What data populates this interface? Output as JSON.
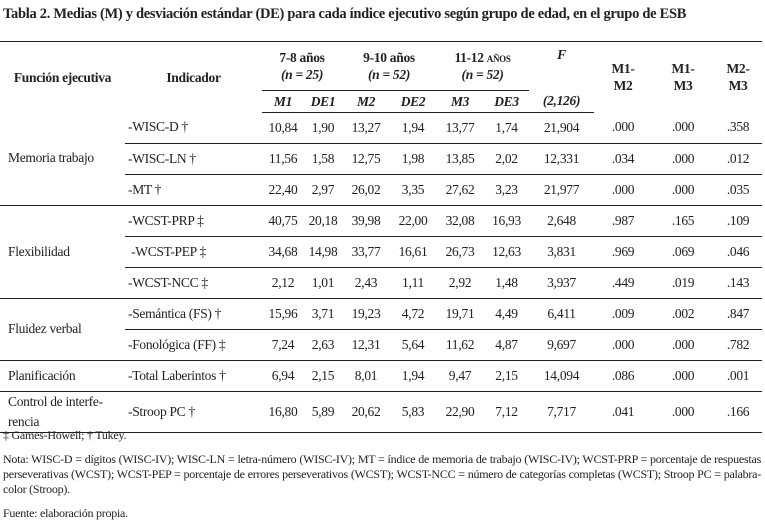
{
  "title": "Tabla 2. Medias (M) y desviación estándar (DE) para cada índice ejecutivo según grupo de edad, en el grupo de ESB",
  "header": {
    "funcion": "Función ejecutiva",
    "indicador": "Indicador",
    "groups": [
      {
        "age": "7-8 años",
        "n": "(n = 25)"
      },
      {
        "age": "9-10 años",
        "n": "(n = 52)"
      },
      {
        "age": "11-12 años",
        "n": "(n = 52)"
      }
    ],
    "f": "F",
    "f_df": "(2,126)",
    "sub": [
      "M1",
      "DE1",
      "M2",
      "DE2",
      "M3",
      "DE3"
    ],
    "comparisons": [
      "M1-M2",
      "M1-M3",
      "M2-M3"
    ]
  },
  "groups": [
    {
      "funcion": "Memoria trabajo",
      "rows": [
        {
          "indicador": "-WISC-D †",
          "values": [
            "10,84",
            "1,90",
            "13,27",
            "1,94",
            "13,77",
            "1,74",
            "21,904",
            ".000",
            ".000",
            ".358"
          ]
        },
        {
          "indicador": "-WISC-LN †",
          "values": [
            "11,56",
            "1,58",
            "12,75",
            "1,98",
            "13,85",
            "2,02",
            "12,331",
            ".034",
            ".000",
            ".012"
          ]
        },
        {
          "indicador": "-MT †",
          "values": [
            "22,40",
            "2,97",
            "26,02",
            "3,35",
            "27,62",
            "3,23",
            "21,977",
            ".000",
            ".000",
            ".035"
          ]
        }
      ]
    },
    {
      "funcion": "Flexibilidad",
      "rows": [
        {
          "indicador": "-WCST-PRP ‡",
          "values": [
            "40,75",
            "20,18",
            "39,98",
            "22,00",
            "32,08",
            "16,93",
            "2,648",
            ".987",
            ".165",
            ".109"
          ]
        },
        {
          "indicador": " -WCST-PEP ‡",
          "values": [
            "34,68",
            "14,98",
            "33,77",
            "16,61",
            "26,73",
            "12,63",
            "3,831",
            ".969",
            ".069",
            ".046"
          ]
        },
        {
          "indicador": "-WCST-NCC ‡",
          "values": [
            "2,12",
            "1,01",
            "2,43",
            "1,11",
            "2,92",
            "1,48",
            "3,937",
            ".449",
            ".019",
            ".143"
          ]
        }
      ]
    },
    {
      "funcion": "Fluidez verbal",
      "rows": [
        {
          "indicador": "-Semántica (FS) †",
          "values": [
            "15,96",
            "3,71",
            "19,23",
            "4,72",
            "19,71",
            "4,49",
            "6,411",
            ".009",
            ".002",
            ".847"
          ]
        },
        {
          "indicador": "-Fonológica (FF) ‡",
          "values": [
            "7,24",
            "2,63",
            "12,31",
            "5,64",
            "11,62",
            "4,87",
            "9,697",
            ".000",
            ".000",
            ".782"
          ]
        }
      ]
    },
    {
      "funcion": "Planificación",
      "rows": [
        {
          "indicador": "-Total Laberintos †",
          "values": [
            "6,94",
            "2,15",
            "8,01",
            "1,94",
            "9,47",
            "2,15",
            "14,094",
            ".086",
            ".000",
            ".001"
          ]
        }
      ]
    },
    {
      "funcion": "Control de interfe-rencia",
      "rows": [
        {
          "indicador": "-Stroop PC †",
          "values": [
            "16,80",
            "5,89",
            "20,62",
            "5,83",
            "22,90",
            "7,12",
            "7,717",
            ".041",
            ".000",
            ".166"
          ]
        }
      ]
    }
  ],
  "footnotes": {
    "tests": "‡ Games-Howell; † Tukey.",
    "nota": "Nota: WISC-D = dígitos (WISC-IV); WISC-LN = letra-número (WISC-IV); MT = índice de memoria de trabajo (WISC-IV); WCST-PRP = porcentaje de respuestas perseverativas (WCST); WCST-PEP = porcentaje de errores perseverativos (WCST); WCST-NCC = número de categorías completas (WCST); Stroop PC = palabra-color (Stroop).",
    "fuente": "Fuente: elaboración propia."
  }
}
